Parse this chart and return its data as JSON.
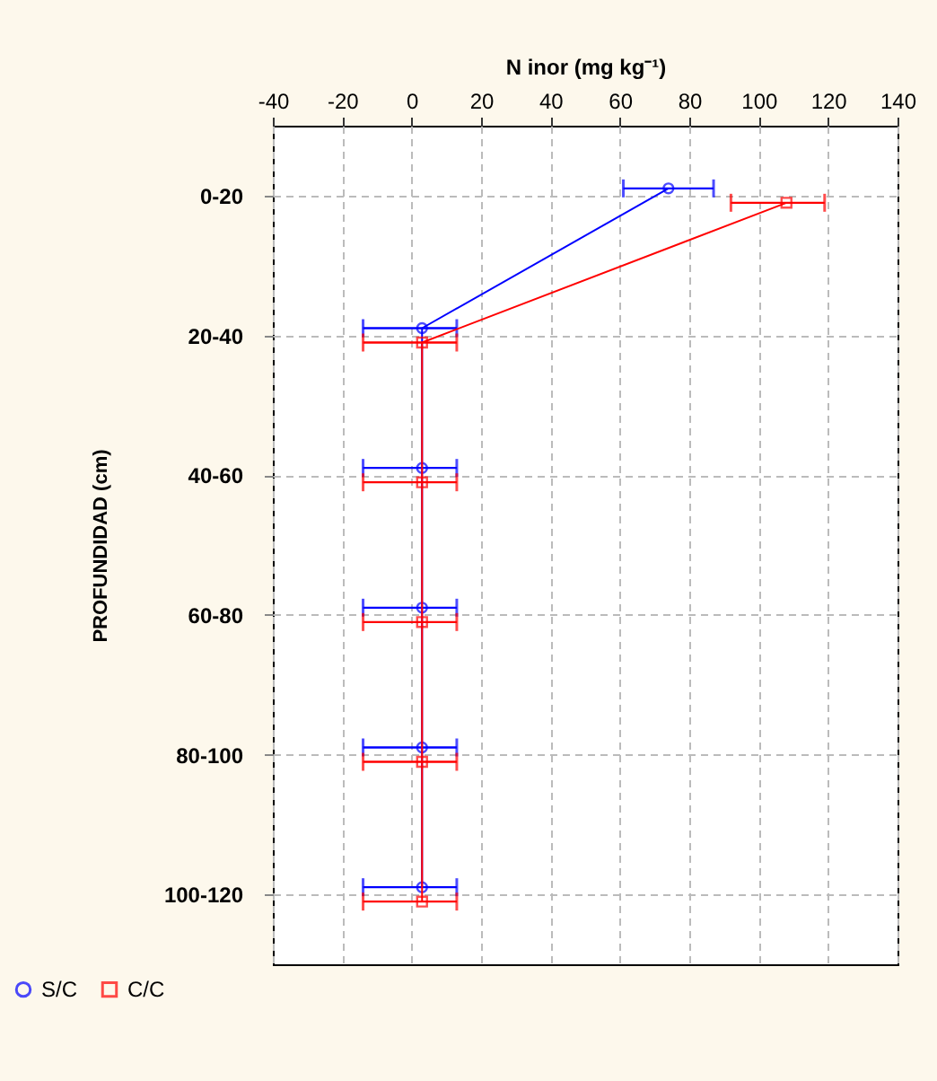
{
  "chart_data": {
    "type": "line",
    "orientation": "horizontal",
    "xlabel": "N inor (mg kg⁻¹)",
    "ylabel": "PROFUNDIDAD (cm)",
    "categories": [
      "0-20",
      "20-40",
      "40-60",
      "60-80",
      "80-100",
      "100-120"
    ],
    "series": [
      {
        "name": "S/C",
        "color": "#0000ff",
        "marker": "circle",
        "values": [
          74,
          3,
          3,
          3,
          3,
          3
        ],
        "errors": [
          13,
          [
            -14,
            13
          ],
          [
            -14,
            13
          ],
          [
            -14,
            13
          ],
          [
            -14,
            13
          ],
          [
            -14,
            13
          ]
        ]
      },
      {
        "name": "C/C",
        "color": "#ff0000",
        "marker": "square",
        "values": [
          108,
          3,
          3,
          3,
          3,
          3
        ],
        "errors": [
          [
            92,
            119
          ],
          [
            -14,
            13
          ],
          [
            -14,
            13
          ],
          [
            -14,
            13
          ],
          [
            -14,
            13
          ],
          [
            -14,
            13
          ]
        ]
      }
    ],
    "xlim": [
      -40,
      140
    ],
    "xticks": [
      -40,
      -20,
      0,
      20,
      40,
      60,
      80,
      100,
      120,
      140
    ],
    "grid": true,
    "legend": "bottom left",
    "line_style": "solid"
  }
}
